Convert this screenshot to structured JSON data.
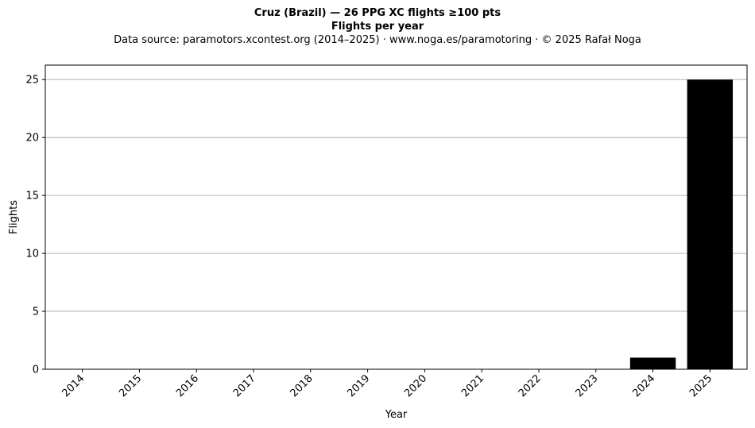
{
  "chart_data": {
    "type": "bar",
    "title": "Cruz (Brazil)  —  26 PPG XC flights ≥100 pts",
    "subtitle": "Flights per year",
    "source_note": "Data source: paramotors.xcontest.org (2014–2025)  ·  www.noga.es/paramotoring  ·  © 2025 Rafał Noga",
    "xlabel": "Year",
    "ylabel": "Flights",
    "categories": [
      "2014",
      "2015",
      "2016",
      "2017",
      "2018",
      "2019",
      "2020",
      "2021",
      "2022",
      "2023",
      "2024",
      "2025"
    ],
    "values": [
      0,
      0,
      0,
      0,
      0,
      0,
      0,
      0,
      0,
      0,
      1,
      25
    ],
    "ylim": [
      0,
      26.25
    ],
    "yticks": [
      0,
      5,
      10,
      15,
      20,
      25
    ],
    "grid": "y",
    "bar_color": "#000000",
    "grid_color": "#b0b0b0"
  }
}
